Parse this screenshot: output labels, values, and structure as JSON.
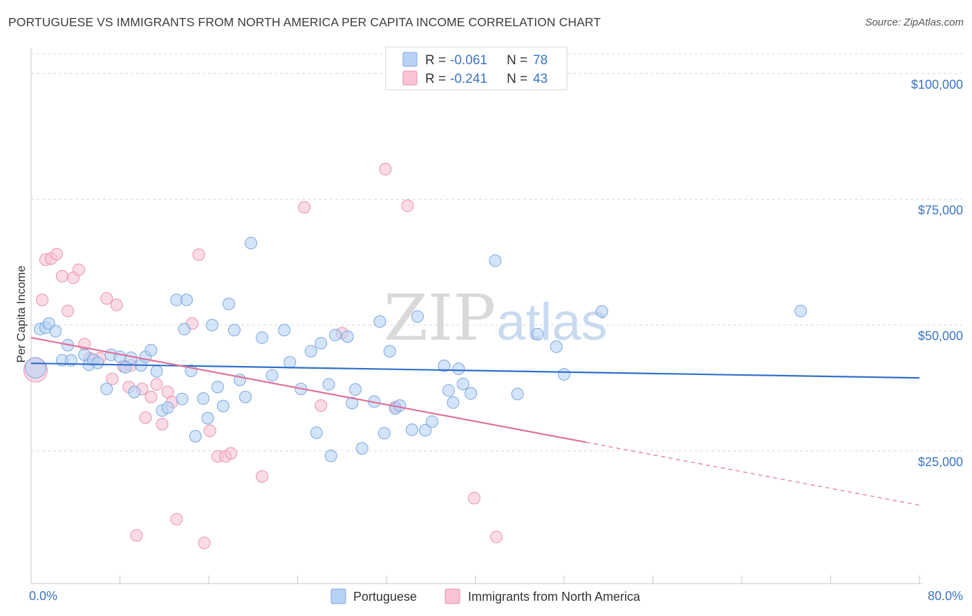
{
  "title": "PORTUGUESE VS IMMIGRANTS FROM NORTH AMERICA PER CAPITA INCOME CORRELATION CHART",
  "source": "Source: ZipAtlas.com",
  "watermark": {
    "part1": "ZIP",
    "part2": "atlas"
  },
  "legend": {
    "r_label": "R =",
    "n_label": "N =",
    "entries": [
      {
        "r": "-0.061",
        "n": "78"
      },
      {
        "r": "-0.241",
        "n": "43"
      }
    ]
  },
  "colors": {
    "blue_fill": "#b7d2f5",
    "blue_stroke": "#7aa6dd",
    "blue_line": "#2d6fcb",
    "pink_fill": "#f8c3d3",
    "pink_stroke": "#e890ad",
    "pink_line": "#e0709a",
    "grid": "#d8d8d8",
    "axis_label": "#3a74c4"
  },
  "chart_data": {
    "type": "scatter",
    "title": "PORTUGUESE VS IMMIGRANTS FROM NORTH AMERICA PER CAPITA INCOME CORRELATION CHART",
    "xlabel": "",
    "ylabel": "Per Capita Income",
    "xlim": [
      0,
      80
    ],
    "ylim": [
      0,
      105000
    ],
    "x_tick_labels": [
      "0.0%",
      "80.0%"
    ],
    "y_ticks": [
      25000,
      50000,
      75000,
      100000
    ],
    "y_tick_labels": [
      "$25,000",
      "$50,000",
      "$75,000",
      "$100,000"
    ],
    "grid": true,
    "legend_position": "top-center",
    "series": [
      {
        "name": "Portuguese",
        "r": -0.061,
        "n": 78,
        "trend": {
          "x": [
            0,
            80
          ],
          "y": [
            42400,
            39500
          ]
        },
        "points": [
          [
            0.4,
            41500
          ],
          [
            0.8,
            49200
          ],
          [
            1.3,
            49500
          ],
          [
            1.6,
            50300
          ],
          [
            2.2,
            48800
          ],
          [
            2.8,
            43000
          ],
          [
            3.3,
            46000
          ],
          [
            3.6,
            43000
          ],
          [
            4.8,
            44100
          ],
          [
            5.2,
            42100
          ],
          [
            5.6,
            43100
          ],
          [
            6.8,
            37300
          ],
          [
            7.2,
            44100
          ],
          [
            8.0,
            43700
          ],
          [
            8.5,
            41600
          ],
          [
            9.3,
            36700
          ],
          [
            9.9,
            42000
          ],
          [
            10.3,
            43700
          ],
          [
            10.8,
            45000
          ],
          [
            11.3,
            40800
          ],
          [
            11.8,
            33000
          ],
          [
            12.3,
            33600
          ],
          [
            13.1,
            55000
          ],
          [
            13.6,
            35300
          ],
          [
            13.8,
            49200
          ],
          [
            14.4,
            40900
          ],
          [
            14.8,
            27900
          ],
          [
            15.5,
            35400
          ],
          [
            15.9,
            31500
          ],
          [
            16.3,
            50000
          ],
          [
            16.8,
            37700
          ],
          [
            17.3,
            33900
          ],
          [
            17.8,
            54200
          ],
          [
            18.3,
            49000
          ],
          [
            18.8,
            39100
          ],
          [
            19.3,
            35700
          ],
          [
            19.8,
            66300
          ],
          [
            20.8,
            47500
          ],
          [
            21.7,
            40000
          ],
          [
            22.8,
            49000
          ],
          [
            23.3,
            42600
          ],
          [
            24.3,
            37300
          ],
          [
            25.2,
            44800
          ],
          [
            25.7,
            28600
          ],
          [
            26.1,
            46400
          ],
          [
            26.8,
            38200
          ],
          [
            27.4,
            48000
          ],
          [
            28.5,
            47700
          ],
          [
            28.9,
            34500
          ],
          [
            29.2,
            37200
          ],
          [
            29.8,
            25500
          ],
          [
            30.9,
            34800
          ],
          [
            31.4,
            50700
          ],
          [
            31.8,
            28500
          ],
          [
            32.3,
            44800
          ],
          [
            32.8,
            33400
          ],
          [
            33.2,
            34000
          ],
          [
            34.3,
            29200
          ],
          [
            34.8,
            51700
          ],
          [
            35.5,
            29100
          ],
          [
            36.1,
            30800
          ],
          [
            37.2,
            41900
          ],
          [
            37.6,
            37000
          ],
          [
            38.0,
            34600
          ],
          [
            38.5,
            41300
          ],
          [
            38.9,
            38300
          ],
          [
            39.6,
            36400
          ],
          [
            41.8,
            62800
          ],
          [
            43.8,
            36300
          ],
          [
            45.6,
            48200
          ],
          [
            47.3,
            45700
          ],
          [
            48.0,
            40200
          ],
          [
            51.4,
            52700
          ],
          [
            69.3,
            52800
          ],
          [
            27.0,
            24000
          ],
          [
            14.0,
            55000
          ],
          [
            9.0,
            43500
          ],
          [
            6.0,
            42500
          ]
        ]
      },
      {
        "name": "Immigrants from North America",
        "r": -0.241,
        "n": 43,
        "trend": {
          "x": [
            0,
            50
          ],
          "y": [
            47500,
            26700
          ]
        },
        "trend_dashed": {
          "x": [
            50,
            80
          ],
          "y": [
            26700,
            14200
          ]
        },
        "points": [
          [
            0.4,
            41000
          ],
          [
            1.0,
            55000
          ],
          [
            1.3,
            63000
          ],
          [
            1.8,
            63200
          ],
          [
            2.3,
            64100
          ],
          [
            2.8,
            59700
          ],
          [
            3.3,
            52800
          ],
          [
            3.8,
            59400
          ],
          [
            4.3,
            61000
          ],
          [
            4.8,
            46200
          ],
          [
            5.3,
            43400
          ],
          [
            6.2,
            43400
          ],
          [
            6.8,
            55300
          ],
          [
            7.3,
            39300
          ],
          [
            7.7,
            54000
          ],
          [
            8.3,
            41800
          ],
          [
            8.8,
            37700
          ],
          [
            9.5,
            8200
          ],
          [
            10.0,
            37300
          ],
          [
            10.3,
            31600
          ],
          [
            10.8,
            35700
          ],
          [
            11.3,
            38200
          ],
          [
            11.8,
            30300
          ],
          [
            12.3,
            36700
          ],
          [
            12.7,
            34700
          ],
          [
            13.1,
            11400
          ],
          [
            14.5,
            50300
          ],
          [
            15.1,
            64000
          ],
          [
            15.6,
            6700
          ],
          [
            16.1,
            29000
          ],
          [
            16.8,
            23900
          ],
          [
            17.5,
            23900
          ],
          [
            18.0,
            24500
          ],
          [
            20.8,
            19900
          ],
          [
            24.6,
            73400
          ],
          [
            26.1,
            34000
          ],
          [
            28.0,
            48400
          ],
          [
            31.9,
            81000
          ],
          [
            32.8,
            33700
          ],
          [
            33.9,
            73700
          ],
          [
            39.9,
            15600
          ],
          [
            41.9,
            7900
          ],
          [
            9.0,
            42000
          ]
        ]
      }
    ]
  }
}
